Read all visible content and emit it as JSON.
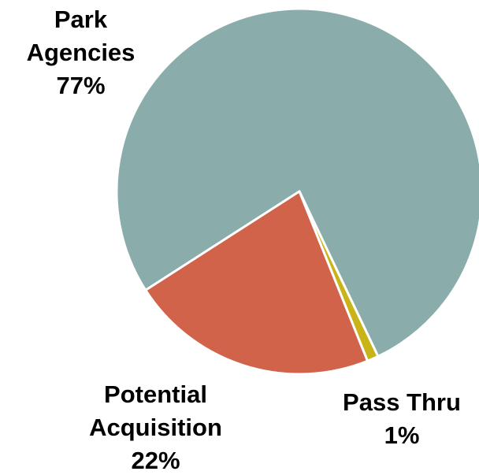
{
  "chart_data": {
    "type": "pie",
    "categories": [
      "Park Agencies",
      "Pass Thru",
      "Potential Acquisition"
    ],
    "values": [
      77,
      1,
      22
    ],
    "value_labels": [
      "77%",
      "1%",
      "22%"
    ],
    "colors": [
      "#8aadac",
      "#c9b418",
      "#d0634a"
    ]
  }
}
